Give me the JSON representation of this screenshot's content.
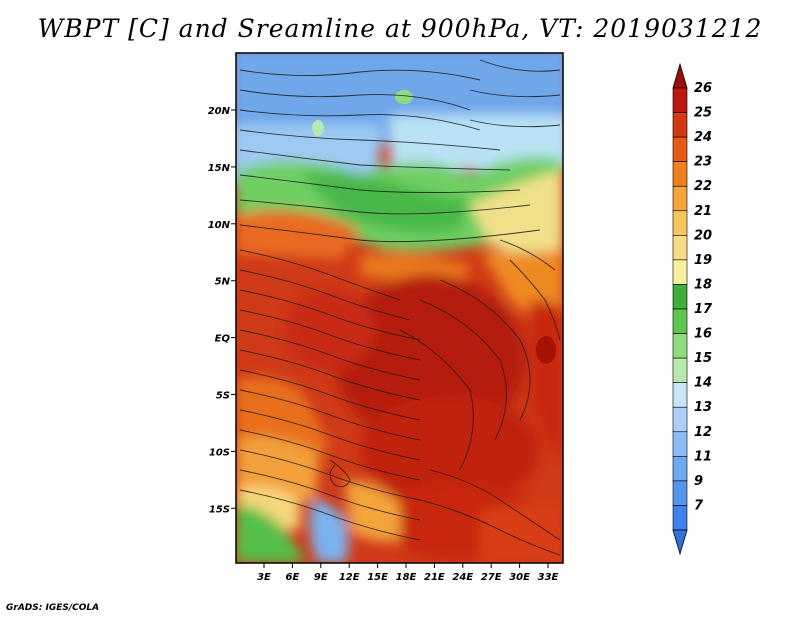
{
  "title": "WBPT [C] and Sreamline at 900hPa, VT: 2019031212",
  "credit": "GrADS: IGES/COLA",
  "map": {
    "lon_labels": [
      "3E",
      "6E",
      "9E",
      "12E",
      "15E",
      "18E",
      "21E",
      "24E",
      "27E",
      "30E",
      "33E"
    ],
    "lat_labels": [
      "20N",
      "15N",
      "10N",
      "5N",
      "EQ",
      "5S",
      "10S",
      "15S"
    ]
  },
  "colorbar": {
    "labels": [
      "7",
      "9",
      "11",
      "12",
      "13",
      "14",
      "15",
      "16",
      "17",
      "18",
      "19",
      "20",
      "21",
      "22",
      "23",
      "24",
      "25",
      "26"
    ],
    "colors": [
      "#2f6fe0",
      "#3f80ea",
      "#5595ee",
      "#6fa8f2",
      "#8cbcf5",
      "#aad0f7",
      "#c8e6f8",
      "#b8eab0",
      "#8fdc80",
      "#5cc450",
      "#3eae3c",
      "#f7f0a0",
      "#f6dc82",
      "#f6c45c",
      "#f3a43a",
      "#ee8020",
      "#e55a14",
      "#d53812",
      "#bb1810",
      "#991006"
    ]
  }
}
